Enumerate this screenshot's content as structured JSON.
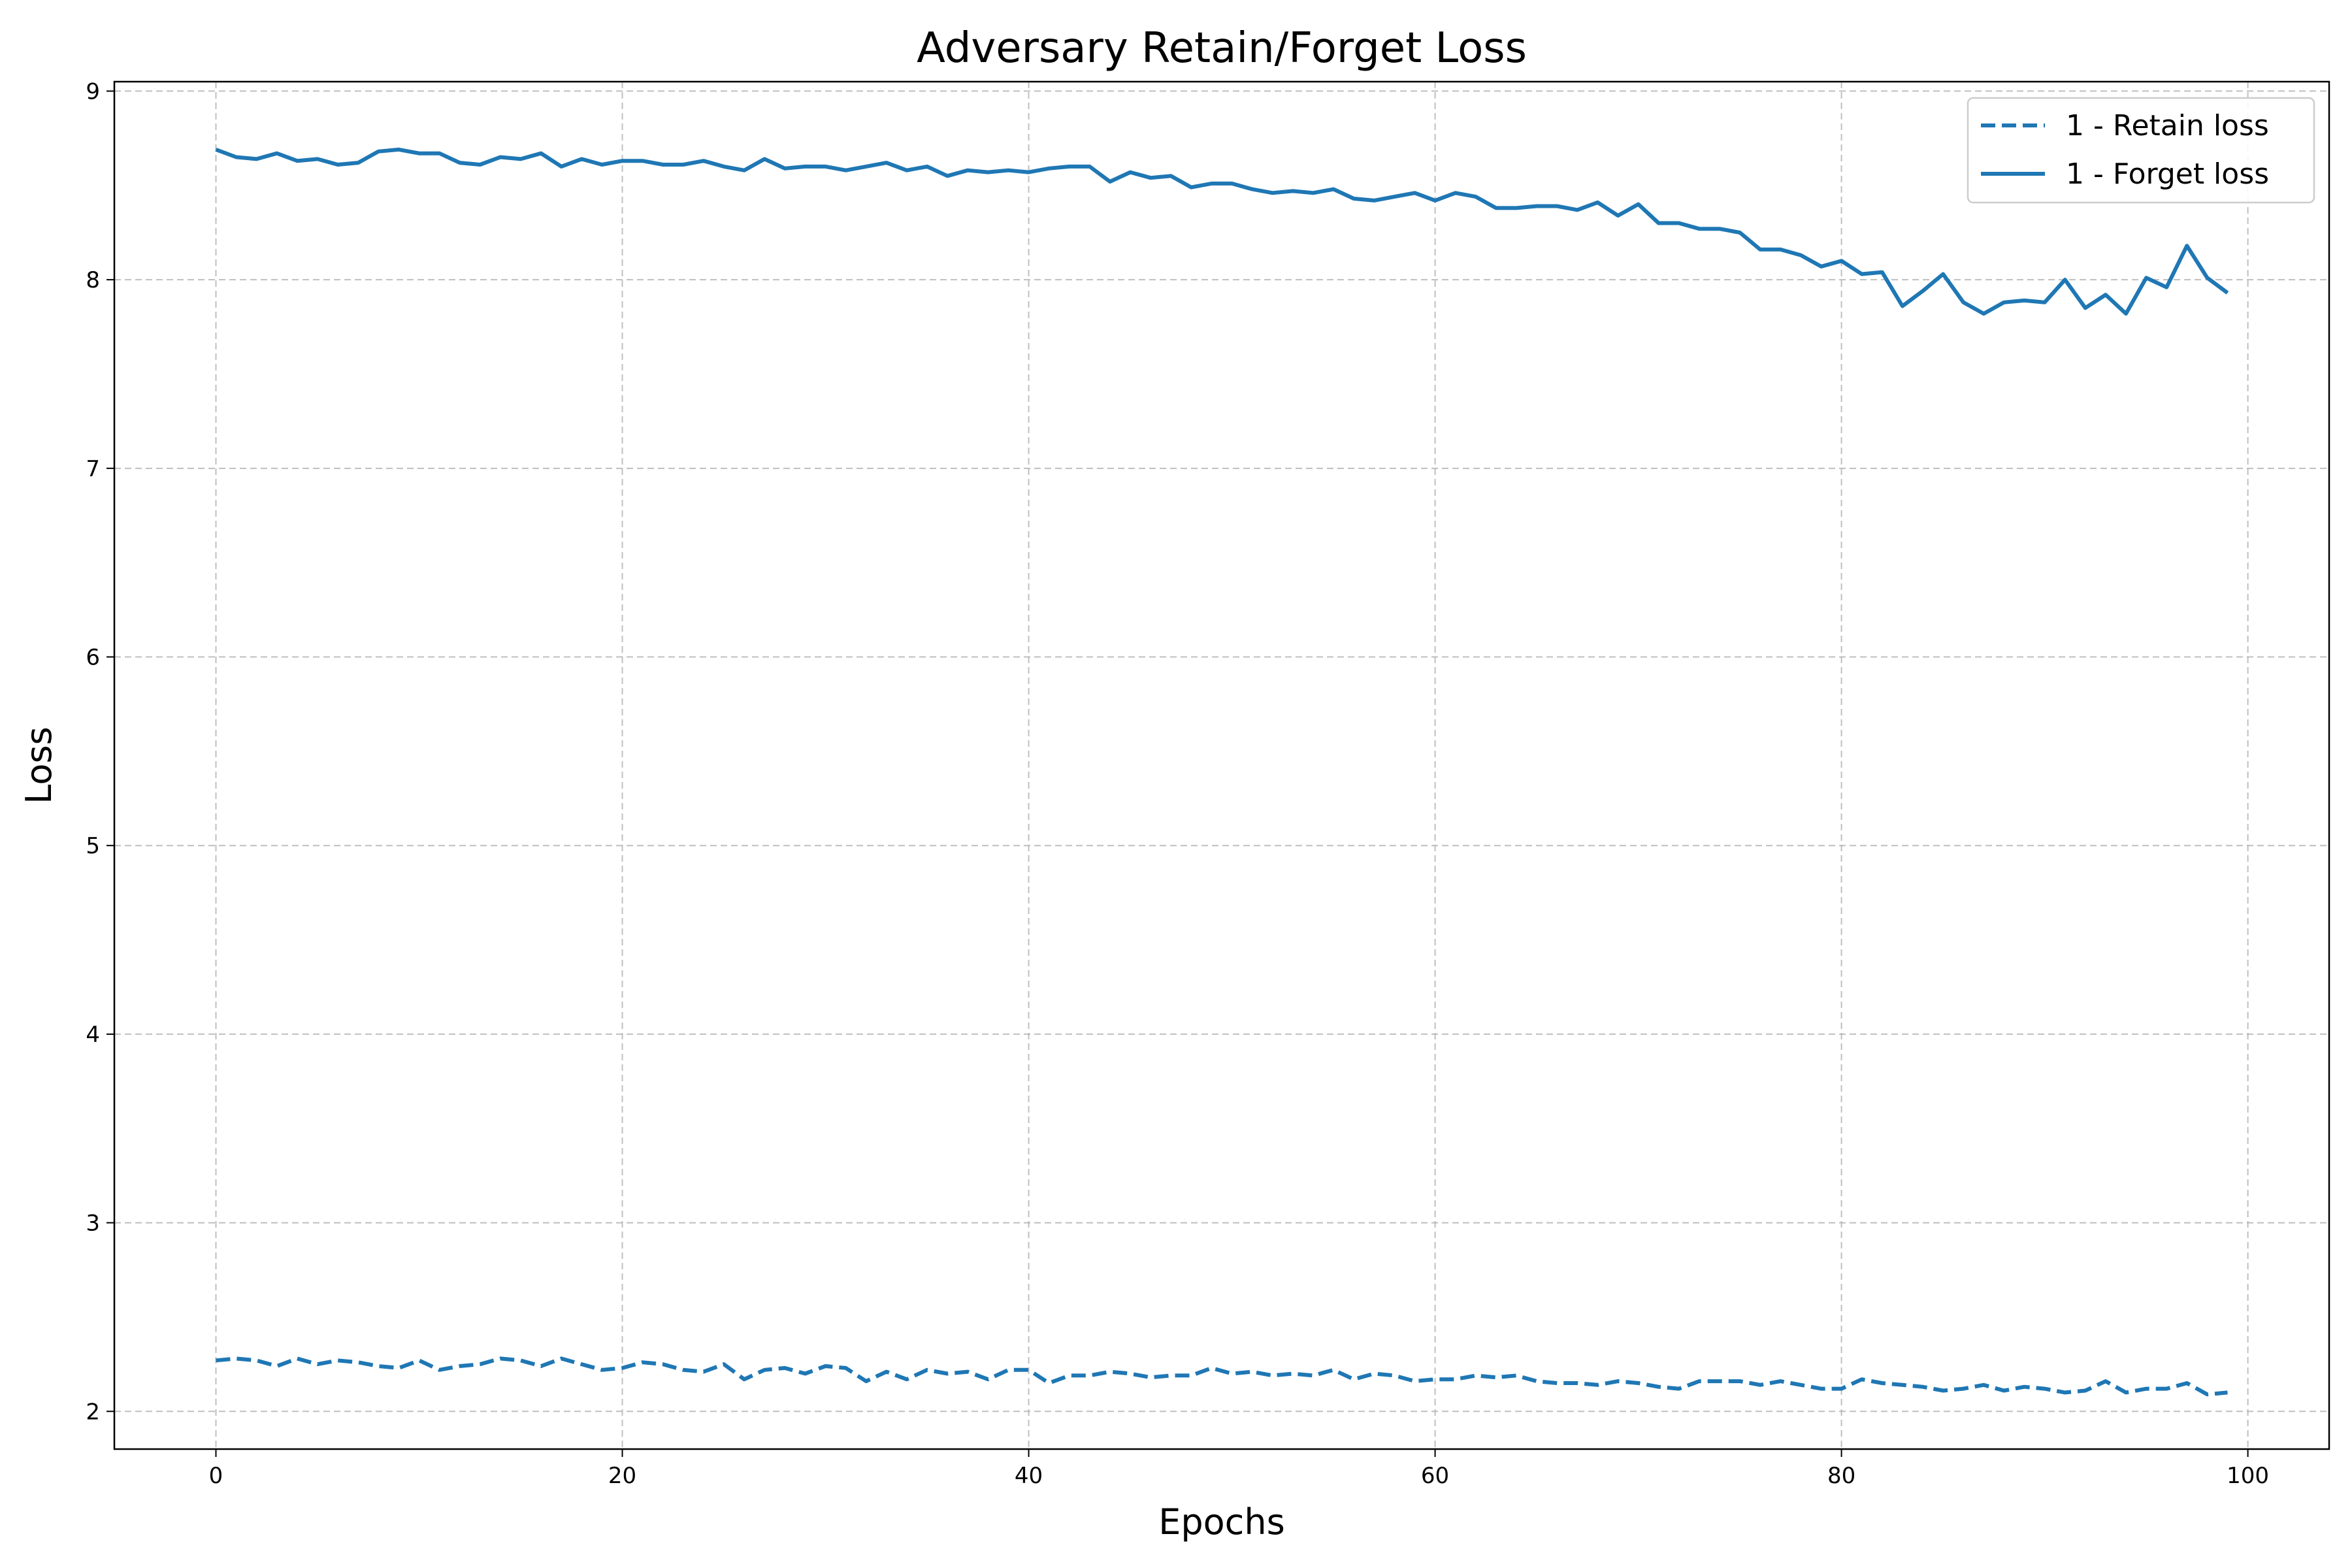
{
  "chart_data": {
    "type": "line",
    "title": "Adversary Retain/Forget Loss",
    "xlabel": "Epochs",
    "ylabel": "Loss",
    "xlim": [
      -5,
      104
    ],
    "ylim": [
      1.8,
      9.05
    ],
    "xticks": [
      0,
      20,
      40,
      60,
      80,
      100
    ],
    "yticks": [
      2,
      3,
      4,
      5,
      6,
      7,
      8,
      9
    ],
    "grid": true,
    "legend_position": "top-right",
    "x": [
      0,
      1,
      2,
      3,
      4,
      5,
      6,
      7,
      8,
      9,
      10,
      11,
      12,
      13,
      14,
      15,
      16,
      17,
      18,
      19,
      20,
      21,
      22,
      23,
      24,
      25,
      26,
      27,
      28,
      29,
      30,
      31,
      32,
      33,
      34,
      35,
      36,
      37,
      38,
      39,
      40,
      41,
      42,
      43,
      44,
      45,
      46,
      47,
      48,
      49,
      50,
      51,
      52,
      53,
      54,
      55,
      56,
      57,
      58,
      59,
      60,
      61,
      62,
      63,
      64,
      65,
      66,
      67,
      68,
      69,
      70,
      71,
      72,
      73,
      74,
      75,
      76,
      77,
      78,
      79,
      80,
      81,
      82,
      83,
      84,
      85,
      86,
      87,
      88,
      89,
      90,
      91,
      92,
      93,
      94,
      95,
      96,
      97,
      98,
      99
    ],
    "series": [
      {
        "name": "1 - Retain loss",
        "style": "dashed",
        "color": "#1f77b4",
        "values": [
          2.27,
          2.28,
          2.27,
          2.24,
          2.28,
          2.25,
          2.27,
          2.26,
          2.24,
          2.23,
          2.27,
          2.22,
          2.24,
          2.25,
          2.28,
          2.27,
          2.24,
          2.28,
          2.25,
          2.22,
          2.23,
          2.26,
          2.25,
          2.22,
          2.21,
          2.25,
          2.17,
          2.22,
          2.23,
          2.2,
          2.24,
          2.23,
          2.16,
          2.21,
          2.17,
          2.22,
          2.2,
          2.21,
          2.17,
          2.22,
          2.22,
          2.15,
          2.19,
          2.19,
          2.21,
          2.2,
          2.18,
          2.19,
          2.19,
          2.23,
          2.2,
          2.21,
          2.19,
          2.2,
          2.19,
          2.22,
          2.17,
          2.2,
          2.19,
          2.16,
          2.17,
          2.17,
          2.19,
          2.18,
          2.19,
          2.16,
          2.15,
          2.15,
          2.14,
          2.16,
          2.15,
          2.13,
          2.12,
          2.16,
          2.16,
          2.16,
          2.14,
          2.16,
          2.14,
          2.12,
          2.12,
          2.17,
          2.15,
          2.14,
          2.13,
          2.11,
          2.12,
          2.14,
          2.11,
          2.13,
          2.12,
          2.1,
          2.11,
          2.16,
          2.1,
          2.12,
          2.12,
          2.15,
          2.09,
          2.1
        ]
      },
      {
        "name": "1 - Forget loss",
        "style": "solid",
        "color": "#1f77b4",
        "values": [
          8.69,
          8.65,
          8.64,
          8.67,
          8.63,
          8.64,
          8.61,
          8.62,
          8.68,
          8.69,
          8.67,
          8.67,
          8.62,
          8.61,
          8.65,
          8.64,
          8.67,
          8.6,
          8.64,
          8.61,
          8.63,
          8.63,
          8.61,
          8.61,
          8.63,
          8.6,
          8.58,
          8.64,
          8.59,
          8.6,
          8.6,
          8.58,
          8.6,
          8.62,
          8.58,
          8.6,
          8.55,
          8.58,
          8.57,
          8.58,
          8.57,
          8.59,
          8.6,
          8.6,
          8.52,
          8.57,
          8.54,
          8.55,
          8.49,
          8.51,
          8.51,
          8.48,
          8.46,
          8.47,
          8.46,
          8.48,
          8.43,
          8.42,
          8.44,
          8.46,
          8.42,
          8.46,
          8.44,
          8.38,
          8.38,
          8.39,
          8.39,
          8.37,
          8.41,
          8.34,
          8.4,
          8.3,
          8.3,
          8.27,
          8.27,
          8.25,
          8.16,
          8.16,
          8.13,
          8.07,
          8.1,
          8.03,
          8.04,
          7.86,
          7.94,
          8.03,
          7.88,
          7.82,
          7.88,
          7.89,
          7.88,
          8.0,
          7.85,
          7.92,
          7.82,
          8.01,
          7.96,
          8.18,
          8.01,
          7.93
        ]
      }
    ]
  }
}
